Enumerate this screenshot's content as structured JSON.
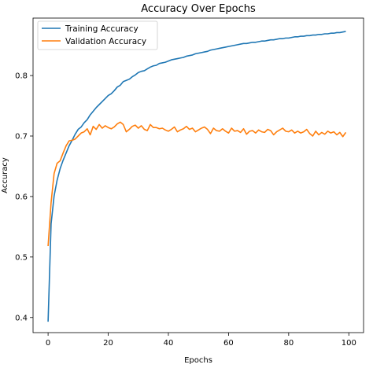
{
  "chart_data": {
    "type": "line",
    "title": "Accuracy Over Epochs",
    "xlabel": "Epochs",
    "ylabel": "Accuracy",
    "xlim": [
      -5,
      104.9
    ],
    "ylim": [
      0.375,
      0.895
    ],
    "xticks": [
      0,
      20,
      40,
      60,
      80,
      100
    ],
    "xtick_labels": [
      "0",
      "20",
      "40",
      "60",
      "80",
      "100"
    ],
    "yticks": [
      0.4,
      0.5,
      0.6,
      0.7,
      0.8
    ],
    "ytick_labels": [
      "0.4",
      "0.5",
      "0.6",
      "0.7",
      "0.8"
    ],
    "grid": false,
    "legend_position": "upper-left",
    "series": [
      {
        "name": "Training Accuracy",
        "color": "#1f77b4",
        "x": [
          0,
          1,
          2,
          3,
          4,
          5,
          6,
          7,
          8,
          9,
          10,
          11,
          12,
          13,
          14,
          15,
          16,
          17,
          18,
          19,
          20,
          21,
          22,
          23,
          24,
          25,
          26,
          27,
          28,
          29,
          30,
          31,
          32,
          33,
          34,
          35,
          36,
          37,
          38,
          39,
          40,
          41,
          42,
          43,
          44,
          45,
          46,
          47,
          48,
          49,
          50,
          51,
          52,
          53,
          54,
          55,
          56,
          57,
          58,
          59,
          60,
          61,
          62,
          63,
          64,
          65,
          66,
          67,
          68,
          69,
          70,
          71,
          72,
          73,
          74,
          75,
          76,
          77,
          78,
          79,
          80,
          81,
          82,
          83,
          84,
          85,
          86,
          87,
          88,
          89,
          90,
          91,
          92,
          93,
          94,
          95,
          96,
          97,
          98,
          99
        ],
        "values": [
          0.393,
          0.555,
          0.601,
          0.627,
          0.646,
          0.66,
          0.672,
          0.684,
          0.693,
          0.703,
          0.711,
          0.715,
          0.722,
          0.727,
          0.735,
          0.741,
          0.747,
          0.752,
          0.757,
          0.762,
          0.767,
          0.77,
          0.775,
          0.781,
          0.784,
          0.79,
          0.792,
          0.794,
          0.798,
          0.801,
          0.805,
          0.807,
          0.808,
          0.811,
          0.814,
          0.816,
          0.817,
          0.82,
          0.821,
          0.822,
          0.824,
          0.826,
          0.827,
          0.828,
          0.829,
          0.83,
          0.832,
          0.833,
          0.834,
          0.836,
          0.837,
          0.838,
          0.839,
          0.84,
          0.842,
          0.843,
          0.844,
          0.845,
          0.846,
          0.847,
          0.848,
          0.849,
          0.85,
          0.851,
          0.852,
          0.853,
          0.853,
          0.854,
          0.855,
          0.855,
          0.856,
          0.857,
          0.857,
          0.858,
          0.859,
          0.859,
          0.86,
          0.861,
          0.861,
          0.862,
          0.862,
          0.863,
          0.864,
          0.864,
          0.865,
          0.865,
          0.866,
          0.866,
          0.867,
          0.867,
          0.868,
          0.868,
          0.869,
          0.869,
          0.87,
          0.87,
          0.871,
          0.871,
          0.872,
          0.873
        ]
      },
      {
        "name": "Validation Accuracy",
        "color": "#ff7f0e",
        "x": [
          0,
          1,
          2,
          3,
          4,
          5,
          6,
          7,
          8,
          9,
          10,
          11,
          12,
          13,
          14,
          15,
          16,
          17,
          18,
          19,
          20,
          21,
          22,
          23,
          24,
          25,
          26,
          27,
          28,
          29,
          30,
          31,
          32,
          33,
          34,
          35,
          36,
          37,
          38,
          39,
          40,
          41,
          42,
          43,
          44,
          45,
          46,
          47,
          48,
          49,
          50,
          51,
          52,
          53,
          54,
          55,
          56,
          57,
          58,
          59,
          60,
          61,
          62,
          63,
          64,
          65,
          66,
          67,
          68,
          69,
          70,
          71,
          72,
          73,
          74,
          75,
          76,
          77,
          78,
          79,
          80,
          81,
          82,
          83,
          84,
          85,
          86,
          87,
          88,
          89,
          90,
          91,
          92,
          93,
          94,
          95,
          96,
          97,
          98,
          99
        ],
        "values": [
          0.518,
          0.59,
          0.638,
          0.655,
          0.659,
          0.672,
          0.684,
          0.692,
          0.693,
          0.695,
          0.7,
          0.705,
          0.707,
          0.712,
          0.702,
          0.716,
          0.711,
          0.719,
          0.713,
          0.717,
          0.714,
          0.712,
          0.715,
          0.72,
          0.723,
          0.719,
          0.707,
          0.711,
          0.716,
          0.718,
          0.713,
          0.717,
          0.711,
          0.709,
          0.719,
          0.714,
          0.714,
          0.712,
          0.713,
          0.71,
          0.708,
          0.711,
          0.715,
          0.707,
          0.71,
          0.712,
          0.716,
          0.711,
          0.713,
          0.707,
          0.71,
          0.713,
          0.715,
          0.711,
          0.704,
          0.713,
          0.709,
          0.708,
          0.712,
          0.708,
          0.705,
          0.713,
          0.708,
          0.709,
          0.706,
          0.712,
          0.703,
          0.708,
          0.709,
          0.705,
          0.71,
          0.707,
          0.706,
          0.711,
          0.709,
          0.702,
          0.707,
          0.71,
          0.713,
          0.708,
          0.707,
          0.71,
          0.705,
          0.708,
          0.705,
          0.707,
          0.711,
          0.704,
          0.7,
          0.708,
          0.702,
          0.706,
          0.703,
          0.708,
          0.705,
          0.707,
          0.702,
          0.706,
          0.699,
          0.706
        ]
      }
    ]
  }
}
